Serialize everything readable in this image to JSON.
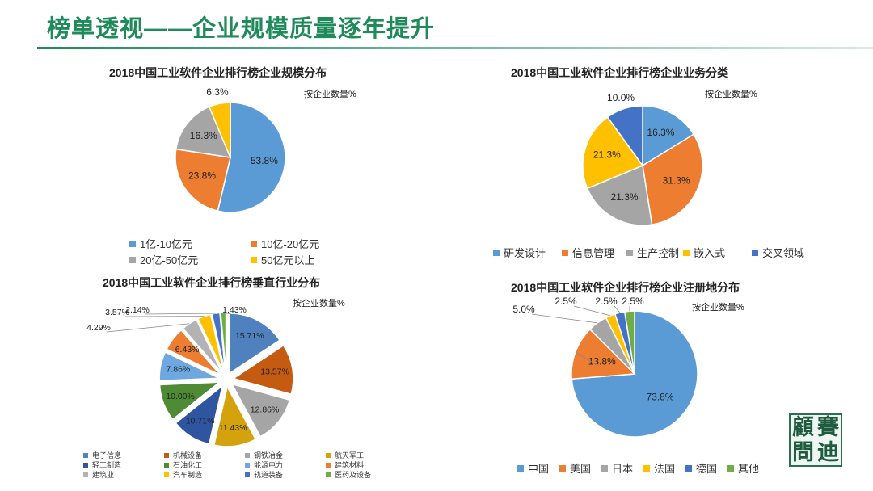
{
  "page_title": "榜单透视——企业规模质量逐年提升",
  "logo": {
    "chars": [
      "顧",
      "賽",
      "問",
      "迪"
    ],
    "text": "顾赛问迪"
  },
  "chart_data": [
    {
      "type": "pie",
      "title": "2018中国工业软件企业排行榜企业规模分布",
      "note": "按企业数量%",
      "slices": [
        {
          "label": "1亿-10亿元",
          "value": 53.8,
          "value_label": "53.8%",
          "color": "#5b9bd5"
        },
        {
          "label": "10亿-20亿元",
          "value": 23.8,
          "value_label": "23.8%",
          "color": "#ed7d31"
        },
        {
          "label": "20亿-50亿元",
          "value": 16.3,
          "value_label": "16.3%",
          "color": "#a5a5a5"
        },
        {
          "label": "50亿元以上",
          "value": 6.3,
          "value_label": "6.3%",
          "color": "#ffc000"
        }
      ]
    },
    {
      "type": "pie",
      "title": "2018中国工业软件企业排行榜企业业务分类",
      "note": "按企业数量%",
      "slices": [
        {
          "label": "研发设计",
          "value": 16.3,
          "value_label": "16.3%",
          "color": "#5b9bd5"
        },
        {
          "label": "信息管理",
          "value": 31.3,
          "value_label": "31.3%",
          "color": "#ed7d31"
        },
        {
          "label": "生产控制",
          "value": 21.3,
          "value_label": "21.3%",
          "color": "#a5a5a5"
        },
        {
          "label": "嵌入式",
          "value": 21.3,
          "value_label": "21.3%",
          "color": "#ffc000"
        },
        {
          "label": "交叉领域",
          "value": 10.0,
          "value_label": "10.0%",
          "color": "#4472c4"
        }
      ]
    },
    {
      "type": "pie",
      "title": "2018中国工业软件企业排行榜垂直行业分布",
      "note": "按企业数量%",
      "slices": [
        {
          "label": "电子信息",
          "value": 15.71,
          "value_label": "15.71%",
          "color": "#4e81bd"
        },
        {
          "label": "机械设备",
          "value": 13.57,
          "value_label": "13.57%",
          "color": "#c55a11"
        },
        {
          "label": "钢铁冶金",
          "value": 12.86,
          "value_label": "12.86%",
          "color": "#a5a5a5"
        },
        {
          "label": "航天军工",
          "value": 11.43,
          "value_label": "11.43%",
          "color": "#d4a20c"
        },
        {
          "label": "轻工制造",
          "value": 10.71,
          "value_label": "10.71%",
          "color": "#2f55a0"
        },
        {
          "label": "石油化工",
          "value": 10.0,
          "value_label": "10.00%",
          "color": "#4f8a34"
        },
        {
          "label": "能源电力",
          "value": 7.86,
          "value_label": "7.86%",
          "color": "#6fa8e0"
        },
        {
          "label": "建筑材料",
          "value": 6.43,
          "value_label": "6.43%",
          "color": "#ed7d31"
        },
        {
          "label": "建筑业",
          "value": 4.29,
          "value_label": "4.29%",
          "color": "#b3b3b3"
        },
        {
          "label": "汽车制造",
          "value": 3.57,
          "value_label": "3.57%",
          "color": "#ffc000"
        },
        {
          "label": "轨道装备",
          "value": 2.14,
          "value_label": "2.14%",
          "color": "#4472c4"
        },
        {
          "label": "医药及设备",
          "value": 1.43,
          "value_label": "1.43%",
          "color": "#70ad47"
        }
      ]
    },
    {
      "type": "pie",
      "title": "2018中国工业软件企业排行榜企业注册地分布",
      "note": "按企业数量%",
      "slices": [
        {
          "label": "中国",
          "value": 73.8,
          "value_label": "73.8%",
          "color": "#5b9bd5"
        },
        {
          "label": "美国",
          "value": 13.8,
          "value_label": "13.8%",
          "color": "#ed7d31"
        },
        {
          "label": "日本",
          "value": 5.0,
          "value_label": "5.0%",
          "color": "#a5a5a5"
        },
        {
          "label": "法国",
          "value": 2.5,
          "value_label": "2.5%",
          "color": "#ffc000"
        },
        {
          "label": "德国",
          "value": 2.5,
          "value_label": "2.5%",
          "color": "#4472c4"
        },
        {
          "label": "其他",
          "value": 2.5,
          "value_label": "2.5%",
          "color": "#70ad47"
        }
      ]
    }
  ]
}
